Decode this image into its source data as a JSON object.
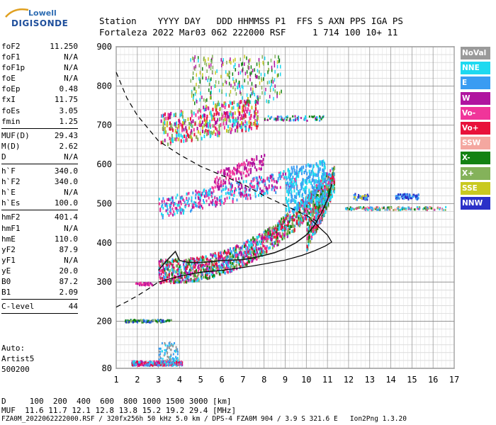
{
  "logo": {
    "line1": "Lowell",
    "line2": "DIGISONDE"
  },
  "header": {
    "line1": "Station    YYYY DAY   DDD HHMMSS P1  FFS S AXN PPS IGA PS",
    "line2": "Fortaleza 2022 Mar03 062 222000 RSF     1 714 100 10+ 11"
  },
  "params": {
    "group1": [
      {
        "name": "foF2",
        "value": "11.250"
      },
      {
        "name": "foF1",
        "value": "N/A"
      },
      {
        "name": "foF1p",
        "value": "N/A"
      },
      {
        "name": "foE",
        "value": "N/A"
      },
      {
        "name": "foEp",
        "value": "0.48"
      },
      {
        "name": "fxI",
        "value": "11.75"
      },
      {
        "name": "foEs",
        "value": "3.05"
      },
      {
        "name": "fmin",
        "value": "1.25"
      }
    ],
    "group2": [
      {
        "name": "MUF(D)",
        "value": "29.43"
      },
      {
        "name": "M(D)",
        "value": "2.62"
      },
      {
        "name": "D",
        "value": "N/A"
      }
    ],
    "group3": [
      {
        "name": "h`F",
        "value": "340.0"
      },
      {
        "name": "h`F2",
        "value": "340.0"
      },
      {
        "name": "h`E",
        "value": "N/A"
      },
      {
        "name": "h`Es",
        "value": "100.0"
      }
    ],
    "group4": [
      {
        "name": "hmF2",
        "value": "401.4"
      },
      {
        "name": "hmF1",
        "value": "N/A"
      },
      {
        "name": "hmE",
        "value": "110.0"
      },
      {
        "name": "yF2",
        "value": "87.9"
      },
      {
        "name": "yF1",
        "value": "N/A"
      },
      {
        "name": "yE",
        "value": "20.0"
      },
      {
        "name": "B0",
        "value": "87.2"
      },
      {
        "name": "B1",
        "value": "2.09"
      }
    ],
    "group5": [
      {
        "name": "C-level",
        "value": "44"
      }
    ]
  },
  "auto": {
    "line1": "Auto:",
    "line2": "Artist5",
    "line3": "500200"
  },
  "legend": [
    {
      "label": "NoVal",
      "color": "#9a9a9a"
    },
    {
      "label": "NNE",
      "color": "#1ed9f0"
    },
    {
      "label": "E",
      "color": "#3a9cf2"
    },
    {
      "label": "W",
      "color": "#b0149f"
    },
    {
      "label": "Vo-",
      "color": "#f0359a"
    },
    {
      "label": "Vo+",
      "color": "#e8113a"
    },
    {
      "label": "SSW",
      "color": "#f4a7a0"
    },
    {
      "label": "X-",
      "color": "#138213"
    },
    {
      "label": "X+",
      "color": "#84b25a"
    },
    {
      "label": "SSE",
      "color": "#c9c920"
    },
    {
      "label": "NNW",
      "color": "#2a31c8"
    }
  ],
  "bottom": {
    "line1": "D     100  200  400  600  800 1000 1500 3000 [km]",
    "line2": "MUF  11.6 11.7 12.1 12.8 13.8 15.2 19.2 29.4 [MHz]",
    "line3": "FZA0M_2022062222000.RSF / 320fx256h 50 kHz 5.0 km / DPS-4 FZA0M 904 / 3.9 S 321.6 E   Ion2Png 1.3.20"
  },
  "chart_data": {
    "type": "scatter",
    "title": "",
    "xlabel": "",
    "ylabel": "",
    "xlim": [
      1,
      17
    ],
    "ylim": [
      80,
      900
    ],
    "x_ticks": [
      1,
      2,
      3,
      4,
      5,
      6,
      7,
      8,
      9,
      10,
      11,
      12,
      13,
      14,
      15,
      16,
      17
    ],
    "y_ticks": [
      80,
      200,
      300,
      400,
      500,
      600,
      700,
      800,
      900
    ],
    "grid": true,
    "legend_placement": "right",
    "series": [
      {
        "name": "trace",
        "points": [
          [
            3.0,
            330
          ],
          [
            3.4,
            355
          ],
          [
            3.8,
            378
          ],
          [
            4.0,
            355
          ],
          [
            4.4,
            350
          ],
          [
            5.0,
            350
          ],
          [
            5.5,
            352
          ],
          [
            6.0,
            355
          ],
          [
            6.5,
            356
          ],
          [
            7.0,
            357
          ],
          [
            7.5,
            362
          ],
          [
            8.0,
            368
          ],
          [
            8.5,
            375
          ],
          [
            9.0,
            386
          ],
          [
            9.5,
            400
          ],
          [
            10.0,
            420
          ],
          [
            10.4,
            445
          ],
          [
            10.7,
            475
          ],
          [
            11.0,
            510
          ],
          [
            11.2,
            550
          ]
        ]
      },
      {
        "name": "profile",
        "points": [
          [
            3.0,
            300
          ],
          [
            4.0,
            315
          ],
          [
            5.0,
            325
          ],
          [
            6.0,
            330
          ],
          [
            7.0,
            337
          ],
          [
            8.0,
            346
          ],
          [
            9.0,
            356
          ],
          [
            9.8,
            368
          ],
          [
            10.4,
            380
          ],
          [
            10.9,
            392
          ],
          [
            11.2,
            402
          ],
          [
            11.0,
            420
          ],
          [
            10.6,
            440
          ],
          [
            10.2,
            460
          ]
        ]
      },
      {
        "name": "extrapolated",
        "points": [
          [
            1.0,
            236
          ],
          [
            1.5,
            250
          ],
          [
            2.0,
            265
          ],
          [
            2.5,
            282
          ],
          [
            3.0,
            300
          ]
        ]
      },
      {
        "name": "topside",
        "points": [
          [
            1.0,
            835
          ],
          [
            1.5,
            770
          ],
          [
            2.0,
            725
          ],
          [
            3.0,
            660
          ],
          [
            4.0,
            625
          ],
          [
            5.0,
            595
          ],
          [
            6.0,
            572
          ],
          [
            7.0,
            550
          ],
          [
            8.0,
            520
          ],
          [
            9.0,
            495
          ],
          [
            10.0,
            470
          ],
          [
            10.5,
            455
          ]
        ]
      }
    ]
  }
}
